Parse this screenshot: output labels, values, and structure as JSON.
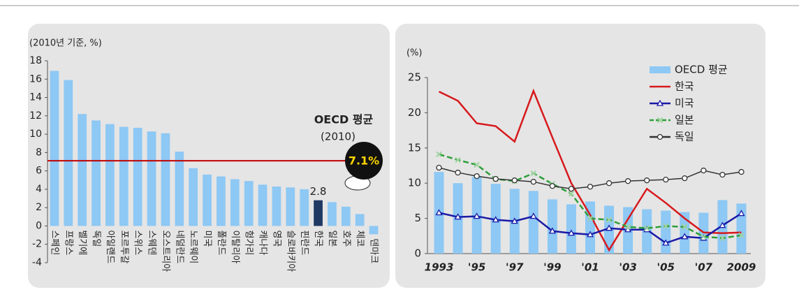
{
  "chart_data": [
    {
      "type": "bar",
      "y_label": "(2010년 기준, %)",
      "categories": [
        "스페인",
        "프랑스",
        "벨기에",
        "독일",
        "아일랜드",
        "포르투갈",
        "스위스",
        "스웨덴",
        "오스트리아",
        "네덜란드",
        "노르웨이",
        "미국",
        "폴란드",
        "이탈리아",
        "헝가리",
        "캐나다",
        "영국",
        "슬로바키아",
        "핀란드",
        "한국",
        "일본",
        "호주",
        "체코",
        "덴마크"
      ],
      "values": [
        16.9,
        15.9,
        12.2,
        11.5,
        11.1,
        10.8,
        10.7,
        10.3,
        10.1,
        8.1,
        6.3,
        5.6,
        5.4,
        5.1,
        4.9,
        4.5,
        4.3,
        4.2,
        4.0,
        2.8,
        2.6,
        2.1,
        1.3,
        -0.9
      ],
      "value_labels": [
        null,
        null,
        null,
        null,
        null,
        null,
        null,
        null,
        null,
        null,
        null,
        null,
        null,
        null,
        null,
        null,
        null,
        null,
        null,
        "2.8",
        null,
        null,
        null,
        null
      ],
      "colors": [
        "#8ec8f4",
        "#8ec8f4",
        "#8ec8f4",
        "#8ec8f4",
        "#8ec8f4",
        "#8ec8f4",
        "#8ec8f4",
        "#8ec8f4",
        "#8ec8f4",
        "#8ec8f4",
        "#8ec8f4",
        "#8ec8f4",
        "#8ec8f4",
        "#8ec8f4",
        "#8ec8f4",
        "#8ec8f4",
        "#8ec8f4",
        "#8ec8f4",
        "#8ec8f4",
        "#1f3864",
        "#8ec8f4",
        "#8ec8f4",
        "#8ec8f4",
        "#8ec8f4"
      ],
      "category_colors": [
        null,
        null,
        null,
        null,
        null,
        null,
        null,
        null,
        null,
        null,
        null,
        null,
        null,
        null,
        null,
        null,
        null,
        null,
        null,
        "#d7191c",
        null,
        null,
        null,
        null
      ],
      "ylim": [
        -4,
        18
      ],
      "yticks": [
        -4,
        -2,
        0,
        2,
        4,
        6,
        8,
        10,
        12,
        14,
        16,
        18
      ],
      "reference_line": {
        "value": 7.1,
        "color": "#c00000",
        "label": "OECD 평균",
        "sublabel": "(2010)",
        "badge": "7.1%"
      }
    },
    {
      "type": "combo",
      "y_label": "(%)",
      "categories": [
        "1993",
        null,
        "'95",
        null,
        "'97",
        null,
        "'99",
        null,
        "'01",
        null,
        "'03",
        null,
        "'05",
        null,
        "'07",
        null,
        "2009"
      ],
      "ylim": [
        0,
        25
      ],
      "yticks": [
        0,
        5,
        10,
        15,
        20,
        25
      ],
      "series": [
        {
          "name": "OECD 평균",
          "type": "bar",
          "color": "#8ec8f4",
          "values": [
            11.6,
            10.0,
            10.9,
            9.9,
            9.2,
            8.9,
            7.7,
            7.0,
            7.4,
            6.8,
            6.6,
            6.3,
            6.1,
            5.9,
            5.8,
            7.6,
            7.1
          ]
        },
        {
          "name": "한국",
          "type": "line",
          "color": "#d7191c",
          "marker": "none",
          "values": [
            23.0,
            21.7,
            18.5,
            18.1,
            15.9,
            23.1,
            16.5,
            10.0,
            5.5,
            0.5,
            4.9,
            9.2,
            7.2,
            5.0,
            3.0,
            2.9,
            3.0
          ]
        },
        {
          "name": "미국",
          "type": "line",
          "color": "#1a1aa6",
          "marker": "triangle",
          "values": [
            5.8,
            5.2,
            5.3,
            4.8,
            4.6,
            5.3,
            3.2,
            2.9,
            2.7,
            3.6,
            3.4,
            3.4,
            1.5,
            2.4,
            2.2,
            4.0,
            5.7
          ]
        },
        {
          "name": "일본",
          "type": "line",
          "color": "#2e9e3a",
          "marker": "cross",
          "dashed": true,
          "values": [
            14.1,
            13.3,
            12.6,
            10.6,
            10.3,
            11.4,
            9.9,
            8.5,
            5.0,
            4.8,
            3.8,
            3.6,
            3.9,
            3.8,
            2.4,
            2.2,
            2.6
          ]
        },
        {
          "name": "독일",
          "type": "line",
          "color": "#333333",
          "marker": "circle",
          "values": [
            12.2,
            11.5,
            11.0,
            10.6,
            10.4,
            10.2,
            9.6,
            9.2,
            9.5,
            10.0,
            10.3,
            10.4,
            10.5,
            10.7,
            11.8,
            11.2,
            11.6
          ]
        }
      ]
    }
  ]
}
